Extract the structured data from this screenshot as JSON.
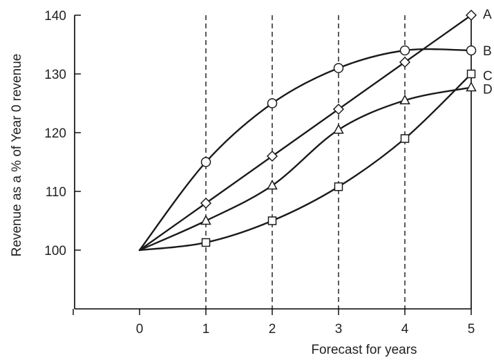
{
  "chart_data": {
    "type": "line",
    "xlabel": "Forecast for years",
    "ylabel": "Revenue as a % of Year 0 revenue",
    "x": [
      0,
      1,
      2,
      3,
      4,
      5
    ],
    "x_ticks": [
      0,
      1,
      2,
      3,
      4,
      5
    ],
    "y_ticks": [
      100,
      110,
      120,
      130,
      140
    ],
    "xlim": [
      -1,
      5
    ],
    "ylim": [
      90,
      140
    ],
    "dashed_verticals_at": [
      1,
      2,
      3,
      4
    ],
    "series": [
      {
        "name": "A",
        "marker": "diamond",
        "values": [
          100,
          108,
          116,
          124,
          132,
          140
        ]
      },
      {
        "name": "B",
        "marker": "circle",
        "values": [
          100,
          115,
          125,
          131,
          134,
          134
        ]
      },
      {
        "name": "C",
        "marker": "square",
        "values": [
          100,
          101.3,
          105,
          110.8,
          119,
          130
        ]
      },
      {
        "name": "D",
        "marker": "triangle",
        "values": [
          100,
          105,
          111,
          120.5,
          125.5,
          127.7
        ]
      }
    ]
  }
}
